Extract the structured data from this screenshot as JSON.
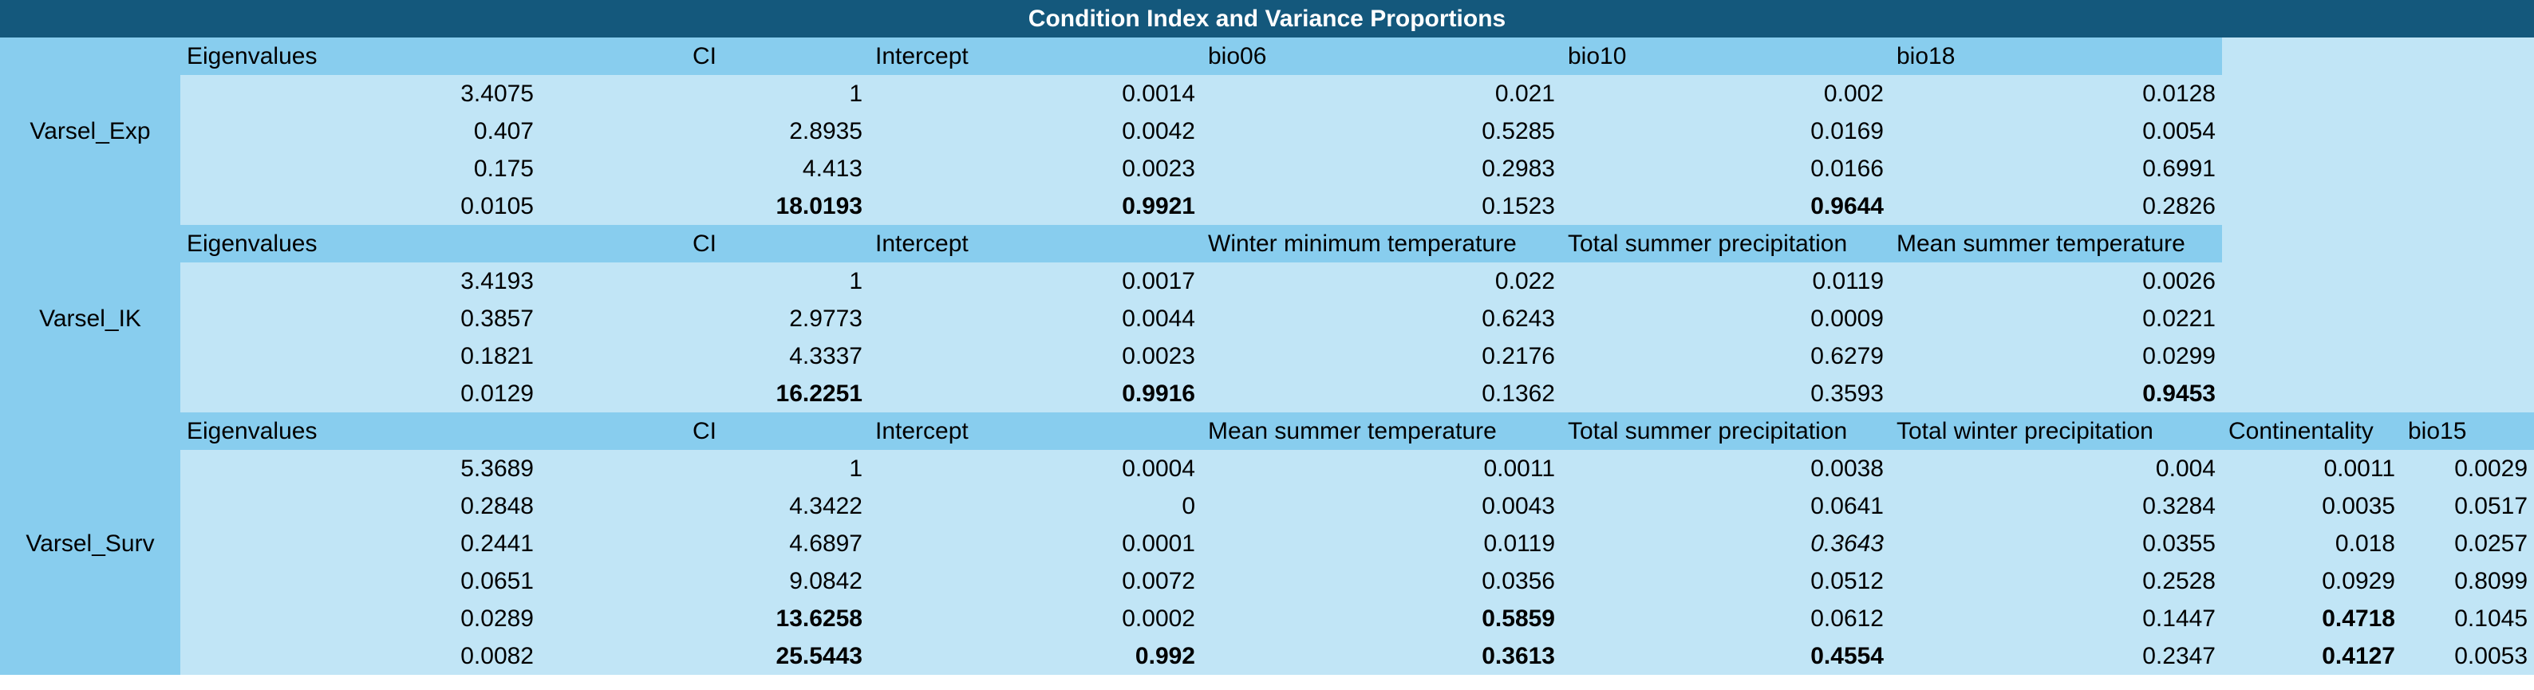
{
  "title": "Condition Index and Variance Proportions",
  "blocks": [
    {
      "label": "Varsel_Exp",
      "headers": [
        "Eigenvalues",
        "CI",
        "Intercept",
        "bio06",
        "bio10",
        "bio18",
        "",
        ""
      ],
      "rows": [
        [
          "3.4075",
          "1",
          "0.0014",
          "0.021",
          "0.002",
          "0.0128",
          "",
          ""
        ],
        [
          "0.407",
          "2.8935",
          "0.0042",
          "0.5285",
          "0.0169",
          "0.0054",
          "",
          ""
        ],
        [
          "0.175",
          "4.413",
          "0.0023",
          "0.2983",
          "0.0166",
          "0.6991",
          "",
          ""
        ],
        [
          "0.0105",
          "18.0193",
          "0.9921",
          "0.1523",
          "0.9644",
          "0.2826",
          "",
          ""
        ]
      ],
      "bold": [
        [
          3,
          1
        ],
        [
          3,
          2
        ],
        [
          3,
          4
        ]
      ],
      "italic": []
    },
    {
      "label": "Varsel_IK",
      "headers": [
        "Eigenvalues",
        "CI",
        "Intercept",
        "Winter minimum temperature",
        "Total summer precipitation",
        "Mean summer temperature",
        "",
        ""
      ],
      "rows": [
        [
          "3.4193",
          "1",
          "0.0017",
          "0.022",
          "0.0119",
          "0.0026",
          "",
          ""
        ],
        [
          "0.3857",
          "2.9773",
          "0.0044",
          "0.6243",
          "0.0009",
          "0.0221",
          "",
          ""
        ],
        [
          "0.1821",
          "4.3337",
          "0.0023",
          "0.2176",
          "0.6279",
          "0.0299",
          "",
          ""
        ],
        [
          "0.0129",
          "16.2251",
          "0.9916",
          "0.1362",
          "0.3593",
          "0.9453",
          "",
          ""
        ]
      ],
      "bold": [
        [
          3,
          1
        ],
        [
          3,
          2
        ],
        [
          3,
          5
        ]
      ],
      "italic": []
    },
    {
      "label": "Varsel_Surv",
      "headers": [
        "Eigenvalues",
        "CI",
        "Intercept",
        "Mean summer temperature",
        "Total summer precipitation",
        "Total winter precipitation",
        "Continentality",
        "bio15"
      ],
      "rows": [
        [
          "5.3689",
          "1",
          "0.0004",
          "0.0011",
          "0.0038",
          "0.004",
          "0.0011",
          "0.0029"
        ],
        [
          "0.2848",
          "4.3422",
          "0",
          "0.0043",
          "0.0641",
          "0.3284",
          "0.0035",
          "0.0517"
        ],
        [
          "0.2441",
          "4.6897",
          "0.0001",
          "0.0119",
          "0.3643",
          "0.0355",
          "0.018",
          "0.0257"
        ],
        [
          "0.0651",
          "9.0842",
          "0.0072",
          "0.0356",
          "0.0512",
          "0.2528",
          "0.0929",
          "0.8099"
        ],
        [
          "0.0289",
          "13.6258",
          "0.0002",
          "0.5859",
          "0.0612",
          "0.1447",
          "0.4718",
          "0.1045"
        ],
        [
          "0.0082",
          "25.5443",
          "0.992",
          "0.3613",
          "0.4554",
          "0.2347",
          "0.4127",
          "0.0053"
        ]
      ],
      "bold": [
        [
          4,
          1
        ],
        [
          4,
          3
        ],
        [
          4,
          6
        ],
        [
          5,
          1
        ],
        [
          5,
          2
        ],
        [
          5,
          3
        ],
        [
          5,
          4
        ],
        [
          5,
          6
        ]
      ],
      "italic": [
        [
          2,
          4
        ]
      ]
    }
  ]
}
